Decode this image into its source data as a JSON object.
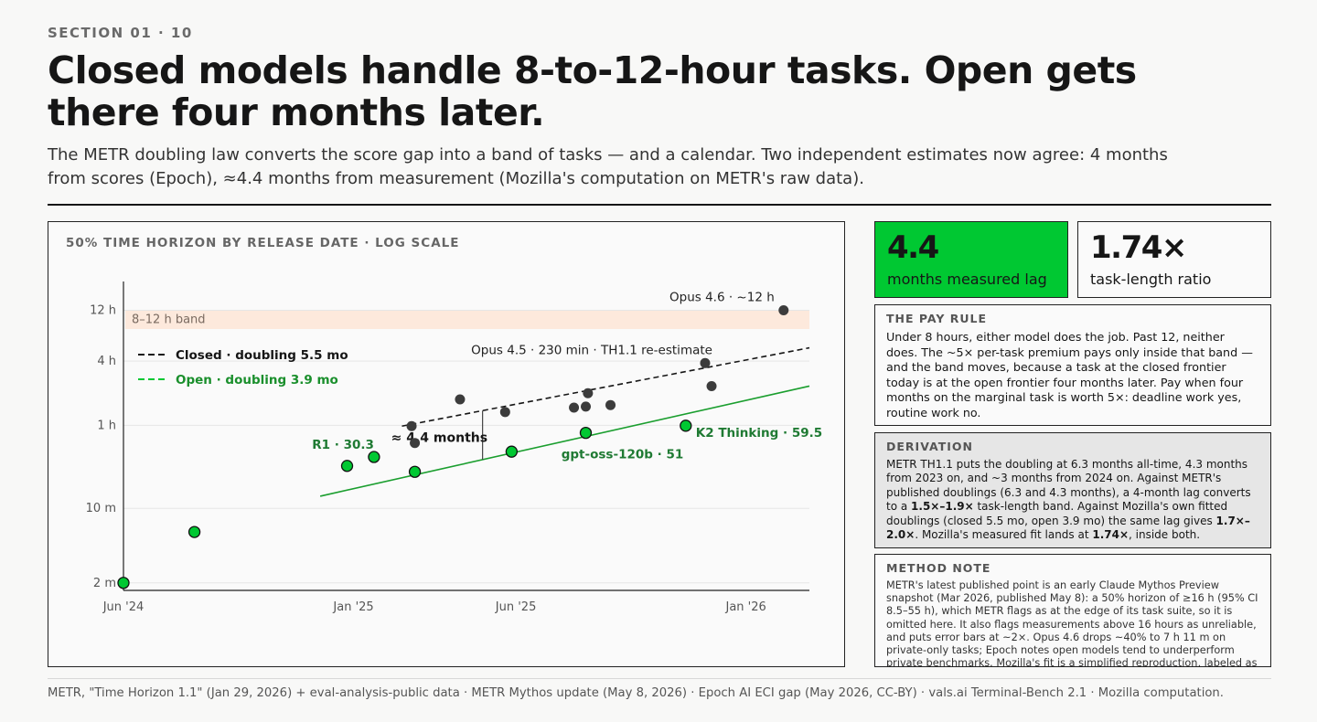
{
  "header": {
    "section": "SECTION 01 · 10",
    "title": "Closed models handle 8-to-12-hour tasks. Open gets there four months later.",
    "subtitle": "The METR doubling law converts the score gap into a band of tasks — and a calendar. Two independent estimates now agree: 4 months from scores (Epoch), ≈4.4 months from measurement (Mozilla's computation on METR's raw data)."
  },
  "stats": {
    "lag": {
      "value": "4.4",
      "label": "months measured lag",
      "color": "#00c832"
    },
    "ratio": {
      "value": "1.74×",
      "label": "task-length ratio"
    }
  },
  "cards": {
    "pay": {
      "heading": "THE PAY RULE",
      "body": "Under 8 hours, either model does the job. Past 12, neither does. The ~5× per-task premium pays only inside that band — and the band moves, because a task at the closed frontier today is at the open frontier four months later. Pay when four months on the marginal task is worth 5×: deadline work yes, routine work no."
    },
    "derivation": {
      "heading": "DERIVATION",
      "part1": "METR TH1.1 puts the doubling at 6.3 months all-time, 4.3 months from 2023 on, and ~3 months from 2024 on. Against METR's published doublings (6.3 and 4.3 months), a 4-month lag converts to a ",
      "bold1": "1.5×–1.9×",
      "part2": " task-length band. Against Mozilla's own fitted doublings (closed 5.5 mo, open 3.9 mo) the same lag gives ",
      "bold2": "1.7×–2.0×",
      "part3": ". Mozilla's measured fit lands at ",
      "bold3": "1.74×",
      "part4": ", inside both."
    },
    "method": {
      "heading": "METHOD NOTE",
      "body": "METR's latest published point is an early Claude Mythos Preview snapshot (Mar 2026, published May 8): a 50% horizon of ≥16 h (95% CI 8.5–55 h), which METR flags as at the edge of its task suite, so it is omitted here. It also flags measurements above 16 hours as unreliable, and puts error bars at ~2×. Opus 4.6 drops ~40% to 7 h 11 m on private-only tasks; Epoch notes open models tend to underperform private benchmarks. Mozilla's fit is a simplified reproduction, labeled as such."
    }
  },
  "footer": "METR, \"Time Horizon 1.1\" (Jan 29, 2026) + eval-analysis-public data · METR Mythos update (May 8, 2026) · Epoch AI ECI gap (May 2026, CC-BY) · vals.ai Terminal-Bench 2.1 · Mozilla computation.",
  "chart_data": {
    "type": "scatter",
    "title": "50% TIME HORIZON BY RELEASE DATE · LOG SCALE",
    "y_scale": "log",
    "y_unit": "minutes",
    "y_ticks": [
      {
        "value": 2,
        "label": "2 m"
      },
      {
        "value": 10,
        "label": "10 m"
      },
      {
        "value": 60,
        "label": "1 h"
      },
      {
        "value": 240,
        "label": "4 h"
      },
      {
        "value": 720,
        "label": "12 h"
      }
    ],
    "ylim": [
      1.7,
      1100
    ],
    "x_ticks": [
      {
        "value": "2024-06-01",
        "label": "Jun '24"
      },
      {
        "value": "2025-01-01",
        "label": "Jan '25"
      },
      {
        "value": "2025-06-01",
        "label": "Jun '25"
      },
      {
        "value": "2026-01-01",
        "label": "Jan '26"
      }
    ],
    "xlim": [
      "2024-06-01",
      "2026-03-01"
    ],
    "band": {
      "from": 480,
      "to": 720,
      "label": "8–12 h band",
      "color": "#fde9dc"
    },
    "grid": true,
    "legend_position": "top-left",
    "series": [
      {
        "name": "Closed · doubling 5.5 mo",
        "color": "#3c3c3c",
        "line_color": "#161616",
        "line_style": "dashed",
        "trend": {
          "from": [
            "2025-02-15",
            59
          ],
          "to": [
            "2026-03-01",
            320
          ]
        },
        "points": [
          {
            "x": "2025-02-24",
            "y": 59
          },
          {
            "x": "2025-02-27",
            "y": 41
          },
          {
            "x": "2025-04-10",
            "y": 105
          },
          {
            "x": "2025-05-22",
            "y": 80
          },
          {
            "x": "2025-07-25",
            "y": 88
          },
          {
            "x": "2025-08-05",
            "y": 90
          },
          {
            "x": "2025-08-07",
            "y": 120
          },
          {
            "x": "2025-08-28",
            "y": 93
          },
          {
            "x": "2025-11-24",
            "y": 230,
            "label": "Opus 4.5 · 230 min · TH1.1 re-estimate"
          },
          {
            "x": "2025-11-30",
            "y": 140
          },
          {
            "x": "2026-02-05",
            "y": 720,
            "label": "Opus 4.6 · ~12 h"
          }
        ]
      },
      {
        "name": "Open · doubling 3.9 mo",
        "color": "#00c832",
        "line_color": "#1a9e2e",
        "line_style": "solid",
        "trend": {
          "from": [
            "2024-12-01",
            13
          ],
          "to": [
            "2026-03-01",
            140
          ]
        },
        "points": [
          {
            "x": "2024-06-01",
            "y": 2
          },
          {
            "x": "2024-08-06",
            "y": 6
          },
          {
            "x": "2024-12-26",
            "y": 25
          },
          {
            "x": "2025-01-20",
            "y": 30.3,
            "label": "R1 · 30.3"
          },
          {
            "x": "2025-02-27",
            "y": 22
          },
          {
            "x": "2025-05-28",
            "y": 34
          },
          {
            "x": "2025-08-05",
            "y": 51,
            "label": "gpt-oss-120b · 51"
          },
          {
            "x": "2025-11-06",
            "y": 59.5,
            "label": "K2 Thinking · 59.5"
          }
        ]
      }
    ],
    "annotation": {
      "label": "≈ 4.4 months"
    }
  }
}
